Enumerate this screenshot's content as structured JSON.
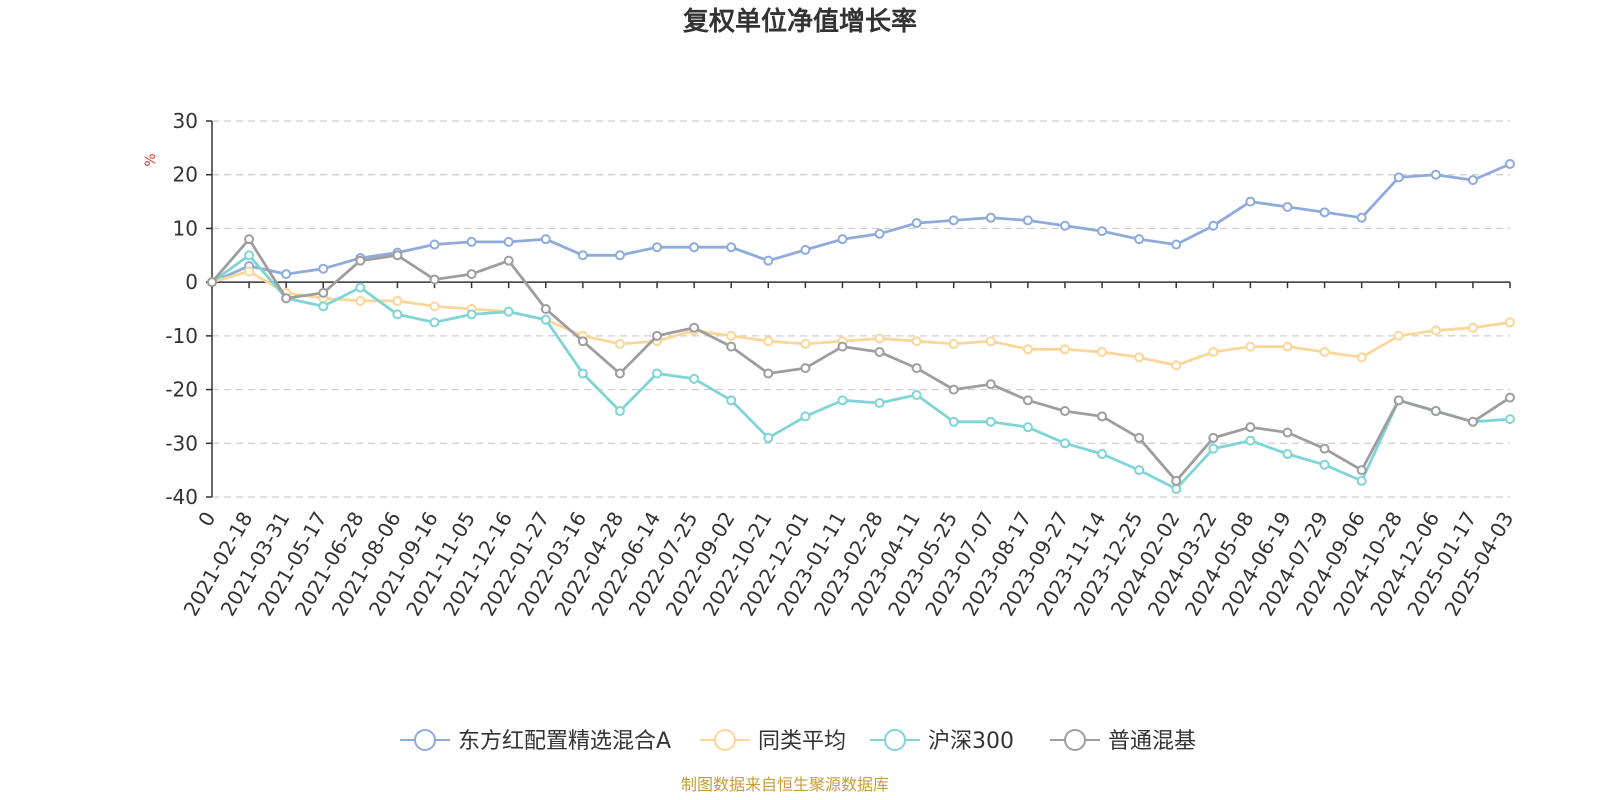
{
  "chart_data": {
    "type": "line",
    "title": "复权单位净值增长率",
    "ylabel": "%",
    "xlabel": "",
    "ylim": [
      -40,
      30
    ],
    "y_ticks": [
      "30",
      "20",
      "10",
      "0",
      "-10",
      "-20",
      "-30",
      "-40"
    ],
    "x_tick_labels": [
      "0",
      "2021-02-18",
      "2021-03-31",
      "2021-05-17",
      "2021-06-28",
      "2021-08-06",
      "2021-09-16",
      "2021-11-05",
      "2021-12-16",
      "2022-01-27",
      "2022-03-16",
      "2022-04-28",
      "2022-06-14",
      "2022-07-25",
      "2022-09-02",
      "2022-10-21",
      "2022-12-01",
      "2023-01-11",
      "2023-02-28",
      "2023-04-11",
      "2023-05-25",
      "2023-07-07",
      "2023-08-17",
      "2023-09-27",
      "2023-11-14",
      "2023-12-25",
      "2024-02-02",
      "2024-03-22",
      "2024-05-08",
      "2024-06-19",
      "2024-07-29",
      "2024-09-06",
      "2024-10-28",
      "2024-12-06",
      "2025-01-17",
      "2025-04-03"
    ],
    "x": [
      "0",
      "2021-02-18",
      "2021-03-31",
      "2021-05-17",
      "2021-06-28",
      "2021-08-06",
      "2021-09-16",
      "2021-11-05",
      "2021-12-16",
      "2022-01-27",
      "2022-03-16",
      "2022-04-28",
      "2022-06-14",
      "2022-07-25",
      "2022-09-02",
      "2022-10-21",
      "2022-12-01",
      "2023-01-11",
      "2023-02-28",
      "2023-04-11",
      "2023-05-25",
      "2023-07-07",
      "2023-08-17",
      "2023-09-27",
      "2023-11-14",
      "2023-12-25",
      "2024-02-02",
      "2024-03-22",
      "2024-05-08",
      "2024-06-19",
      "2024-07-29",
      "2024-09-06",
      "2024-10-28",
      "2024-12-06",
      "2025-01-17",
      "2025-04-03"
    ],
    "series": [
      {
        "name": "东方红配置精选混合A",
        "color": "#8FAADC",
        "values": [
          0,
          3,
          1.5,
          2.5,
          4.5,
          5.5,
          7,
          7.5,
          7.5,
          8,
          5,
          5,
          6.5,
          6.5,
          6.5,
          4,
          6,
          8,
          9,
          11,
          11.5,
          12,
          11.5,
          10.5,
          9.5,
          8,
          7,
          10.5,
          15,
          14,
          13,
          12,
          19.5,
          20,
          19,
          22
        ]
      },
      {
        "name": "同类平均",
        "color": "#FBD699",
        "values": [
          0,
          2,
          -2,
          -3,
          -3.5,
          -3.5,
          -4.5,
          -5,
          -5.5,
          -7,
          -10,
          -11.5,
          -11,
          -9,
          -10,
          -11,
          -11.5,
          -11,
          -10.5,
          -11,
          -11.5,
          -11,
          -12.5,
          -12.5,
          -13,
          -14,
          -15.5,
          -13,
          -12,
          -12,
          -13,
          -14,
          -10,
          -9,
          -8.5,
          -7.5
        ]
      },
      {
        "name": "沪深300",
        "color": "#7FD5D5",
        "values": [
          0,
          5,
          -3,
          -4.5,
          -1,
          -6,
          -7.5,
          -6,
          -5.5,
          -7,
          -17,
          -24,
          -17,
          -18,
          -22,
          -29,
          -25,
          -22,
          -22.5,
          -21,
          -26,
          -26,
          -27,
          -30,
          -32,
          -35,
          -38.5,
          -31,
          -29.5,
          -32,
          -34,
          -37,
          -22,
          -24,
          -26,
          -25.5
        ]
      },
      {
        "name": "普通混基",
        "color": "#9E9E9E",
        "values": [
          0,
          8,
          -3,
          -2,
          4,
          5,
          0.5,
          1.5,
          4,
          -5,
          -11,
          -17,
          -10,
          -8.5,
          -12,
          -17,
          -16,
          -12,
          -13,
          -16,
          -20,
          -19,
          -22,
          -24,
          -25,
          -29,
          -37,
          -29,
          -27,
          -28,
          -31,
          -35,
          -22,
          -24,
          -26,
          -21.5
        ]
      }
    ],
    "legend_position": "bottom-center",
    "grid": true
  },
  "footer": {
    "source": "制图数据来自恒生聚源数据库",
    "source_color": "#C89D3A"
  },
  "styles": {
    "axis_color": "#333333",
    "grid_color": "#CCCCCC",
    "unit_color": "#E03C31"
  }
}
